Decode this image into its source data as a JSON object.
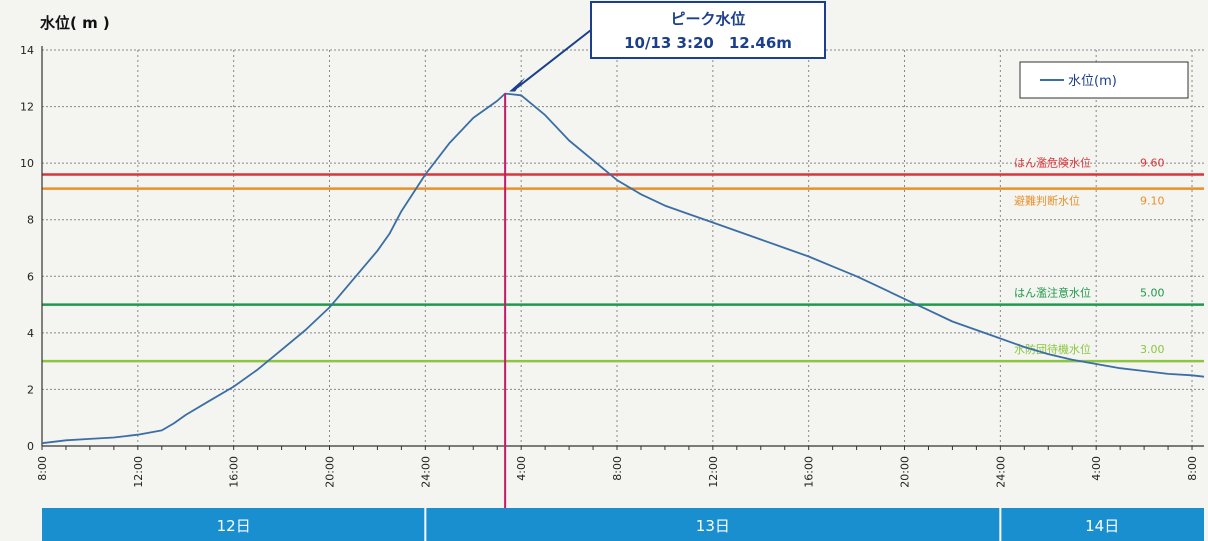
{
  "chart_data": {
    "type": "line",
    "ylabel": "水位( m )",
    "ylim": [
      0,
      14
    ],
    "yticks": [
      "0",
      "2",
      "4",
      "6",
      "8",
      "10",
      "12",
      "14"
    ],
    "xlim": [
      0,
      48.5
    ],
    "xticks": [
      {
        "h": 0,
        "label": "8:00"
      },
      {
        "h": 4,
        "label": "12:00"
      },
      {
        "h": 8,
        "label": "16:00"
      },
      {
        "h": 12,
        "label": "20:00"
      },
      {
        "h": 16,
        "label": "24:00"
      },
      {
        "h": 20,
        "label": "4:00"
      },
      {
        "h": 24,
        "label": "8:00"
      },
      {
        "h": 28,
        "label": "12:00"
      },
      {
        "h": 32,
        "label": "16:00"
      },
      {
        "h": 36,
        "label": "20:00"
      },
      {
        "h": 40,
        "label": "24:00"
      },
      {
        "h": 44,
        "label": "4:00"
      },
      {
        "h": 48,
        "label": "8:00"
      }
    ],
    "series": [
      {
        "name": "水位(m)",
        "color": "#3a6ea5",
        "x": [
          0,
          1,
          2,
          3,
          4,
          5,
          5.5,
          6,
          7,
          8,
          9,
          10,
          11,
          12,
          13,
          14,
          14.5,
          15,
          16,
          17,
          18,
          19,
          19.33,
          20,
          21,
          22,
          23,
          24,
          25,
          26,
          27,
          28,
          29,
          30,
          31,
          32,
          33,
          34,
          35,
          36,
          37,
          38,
          39,
          40,
          41,
          42,
          43,
          44,
          45,
          46,
          47,
          48,
          48.5
        ],
        "y": [
          0.1,
          0.2,
          0.25,
          0.3,
          0.4,
          0.55,
          0.8,
          1.1,
          1.6,
          2.1,
          2.7,
          3.4,
          4.1,
          4.9,
          5.9,
          6.9,
          7.5,
          8.3,
          9.6,
          10.7,
          11.6,
          12.2,
          12.46,
          12.4,
          11.7,
          10.8,
          10.1,
          9.4,
          8.9,
          8.5,
          8.2,
          7.9,
          7.6,
          7.3,
          7.0,
          6.7,
          6.35,
          6.0,
          5.6,
          5.2,
          4.8,
          4.4,
          4.1,
          3.8,
          3.5,
          3.25,
          3.05,
          2.9,
          2.75,
          2.65,
          2.55,
          2.5,
          2.45
        ]
      }
    ],
    "thresholds": [
      {
        "label": "はん濫危険水位",
        "value_text": "9.60",
        "value": 9.6,
        "color": "#d9343a"
      },
      {
        "label": "避難判断水位",
        "value_text": "9.10",
        "value": 9.1,
        "color": "#e8902e"
      },
      {
        "label": "はん濫注意水位",
        "value_text": "5.00",
        "value": 5.0,
        "color": "#1f9a4a"
      },
      {
        "label": "水防団待機水位",
        "value_text": "3.00",
        "value": 3.0,
        "color": "#8cc63f"
      }
    ],
    "peak": {
      "x": 19.33,
      "y": 12.46,
      "title": "ピーク水位",
      "detail": "10/13 3:20　12.46m",
      "line_color": "#c8186a"
    },
    "legend": {
      "label": "水位(m)",
      "position": "top-right"
    },
    "days": [
      {
        "label": "12日",
        "from": -0.5,
        "to": 16
      },
      {
        "label": "13日",
        "from": 16,
        "to": 40
      },
      {
        "label": "14日",
        "from": 40,
        "to": 48.5
      }
    ],
    "colors": {
      "day_bar": "#1a8fd0",
      "grid": "#888888"
    }
  }
}
